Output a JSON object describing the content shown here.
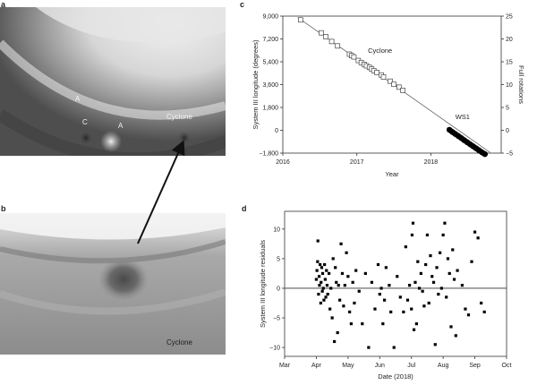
{
  "panels": {
    "a": {
      "letter": "a",
      "labels": {
        "a1": "A",
        "c": "C",
        "a2": "A",
        "cyclone": "Cyclone"
      }
    },
    "b": {
      "letter": "b",
      "labels": {
        "cyclone": "Cyclone"
      }
    },
    "c": {
      "letter": "c"
    },
    "d": {
      "letter": "d"
    }
  },
  "chart_data": [
    {
      "type": "scatter",
      "panel": "c",
      "title": "",
      "xlabel": "Year",
      "ylabel": "System III longitude (degrees)",
      "y2label": "Full rotations",
      "xlim": [
        2016,
        2018.95
      ],
      "ylim": [
        -1800,
        9000
      ],
      "y2lim": [
        -5,
        25
      ],
      "xticks": [
        "2016",
        "2017",
        "2018"
      ],
      "xtick_values": [
        2016,
        2017,
        2018
      ],
      "yticks": [
        "9,000",
        "7,200",
        "5,400",
        "3,600",
        "1,800",
        "0",
        "−1,800"
      ],
      "ytick_values": [
        9000,
        7200,
        5400,
        3600,
        1800,
        0,
        -1800
      ],
      "y2ticks": [
        "25",
        "20",
        "15",
        "10",
        "5",
        "0",
        "−5"
      ],
      "y2tick_values": [
        25,
        20,
        15,
        10,
        5,
        0,
        -5
      ],
      "annotations": [
        {
          "text": "Cyclone",
          "x": 2017.15,
          "y": 6100
        },
        {
          "text": "WS1",
          "x": 2018.33,
          "y": 900
        }
      ],
      "fit_line": {
        "x": [
          2016.2,
          2018.8
        ],
        "y": [
          8900,
          -1750
        ]
      },
      "series": [
        {
          "marker": "open-square",
          "x": [
            2016.24,
            2016.52,
            2016.58,
            2016.66,
            2016.74,
            2016.9,
            2016.93,
            2016.96,
            2017.02,
            2017.06,
            2017.1,
            2017.13,
            2017.17,
            2017.2,
            2017.23,
            2017.27,
            2017.33,
            2017.36,
            2017.45,
            2017.5,
            2017.57,
            2017.62
          ],
          "y": [
            8700,
            7680,
            7380,
            7000,
            6650,
            6000,
            5880,
            5780,
            5500,
            5340,
            5200,
            5080,
            4960,
            4830,
            4700,
            4560,
            4360,
            4200,
            3870,
            3620,
            3400,
            3150
          ]
        },
        {
          "marker": "filled-dense",
          "x": [
            2018.25,
            2018.29,
            2018.33,
            2018.37,
            2018.41,
            2018.45,
            2018.49,
            2018.53,
            2018.57,
            2018.61,
            2018.65,
            2018.69,
            2018.73
          ],
          "y": [
            40,
            -130,
            -290,
            -450,
            -610,
            -780,
            -940,
            -1100,
            -1260,
            -1420,
            -1580,
            -1740,
            -1880
          ]
        }
      ]
    },
    {
      "type": "scatter",
      "panel": "d",
      "title": "",
      "xlabel": "Date (2018)",
      "ylabel": "System III longitude residuals",
      "xlim": [
        0,
        7
      ],
      "ylim": [
        -11.5,
        13
      ],
      "xticks": [
        "Mar",
        "Apr",
        "May",
        "Jun",
        "Jul",
        "Aug",
        "Sep",
        "Oct"
      ],
      "xtick_values": [
        0,
        1,
        2,
        3,
        4,
        5,
        6,
        7
      ],
      "yticks": [
        "10",
        "5",
        "0",
        "−5",
        "−10"
      ],
      "ytick_values": [
        10,
        5,
        0,
        -5,
        -10
      ],
      "zero_line": 0,
      "series": [
        {
          "marker": "filled-square",
          "x": [
            1.0,
            1.02,
            1.04,
            1.05,
            1.07,
            1.09,
            1.1,
            1.12,
            1.14,
            1.15,
            1.17,
            1.19,
            1.2,
            1.22,
            1.24,
            1.26,
            1.28,
            1.3,
            1.32,
            1.34,
            1.36,
            1.4,
            1.43,
            1.46,
            1.5,
            1.53,
            1.57,
            1.6,
            1.63,
            1.67,
            1.7,
            1.74,
            1.78,
            1.82,
            1.86,
            1.9,
            1.95,
            2.0,
            2.05,
            2.1,
            2.15,
            2.2,
            2.25,
            2.35,
            2.45,
            2.55,
            2.65,
            2.75,
            2.85,
            2.95,
            3.0,
            3.05,
            3.1,
            3.15,
            3.2,
            3.3,
            3.35,
            3.45,
            3.55,
            3.65,
            3.75,
            3.82,
            3.88,
            3.94,
            4.0,
            4.02,
            4.05,
            4.08,
            4.12,
            4.16,
            4.2,
            4.25,
            4.3,
            4.35,
            4.4,
            4.45,
            4.5,
            4.55,
            4.6,
            4.65,
            4.7,
            4.75,
            4.8,
            4.85,
            4.9,
            4.95,
            5.0,
            5.05,
            5.1,
            5.15,
            5.2,
            5.25,
            5.3,
            5.35,
            5.4,
            5.45,
            5.6,
            5.7,
            5.8,
            5.9,
            6.0,
            6.1,
            6.2,
            6.3
          ],
          "y": [
            1.5,
            3.0,
            4.5,
            8.0,
            -1.0,
            2.0,
            0.5,
            4.0,
            -2.5,
            1.0,
            3.5,
            -0.5,
            2.5,
            0.0,
            -2.0,
            4.0,
            1.5,
            -1.5,
            3.0,
            0.5,
            -1.0,
            2.5,
            -3.5,
            0.0,
            -5.0,
            5.0,
            -9.0,
            3.5,
            1.0,
            -7.5,
            0.5,
            -2.0,
            7.5,
            2.5,
            -3.0,
            0.5,
            6.0,
            2.0,
            -4.0,
            -6.0,
            1.0,
            -2.5,
            3.0,
            -0.5,
            -6.0,
            2.5,
            -10.0,
            1.0,
            -3.5,
            4.0,
            -1.0,
            0.0,
            -6.0,
            -2.0,
            3.5,
            0.5,
            -4.0,
            -10.0,
            2.0,
            -1.5,
            -4.0,
            7.0,
            -2.0,
            0.5,
            -3.5,
            9.0,
            11.0,
            -7.0,
            1.0,
            -6.0,
            4.5,
            0.0,
            2.5,
            -0.5,
            -3.0,
            4.0,
            9.0,
            -2.5,
            5.5,
            2.0,
            1.0,
            -9.5,
            3.5,
            -1.0,
            6.0,
            0.0,
            9.0,
            11.0,
            -1.5,
            5.0,
            2.5,
            -6.5,
            6.5,
            1.5,
            -8.0,
            3.0,
            0.5,
            -3.5,
            -4.5,
            4.5,
            9.5,
            8.5,
            -2.5,
            -4.0
          ]
        }
      ]
    }
  ]
}
